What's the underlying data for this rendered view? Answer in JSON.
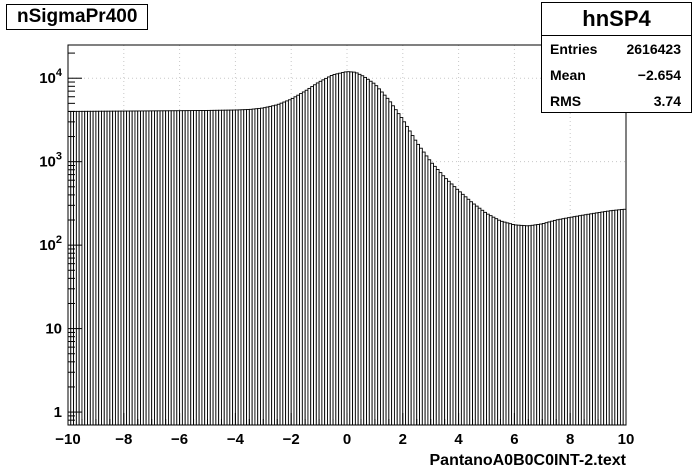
{
  "title": "nSigmaPr400",
  "stats": {
    "name": "hnSP4",
    "entries_label": "Entries",
    "entries_value": "2616423",
    "mean_label": "Mean",
    "mean_value": "−2.654",
    "rms_label": "RMS",
    "rms_value": "3.74"
  },
  "chart_data": {
    "type": "bar",
    "xlabel": "PantanoA0B0C0INT-2.text",
    "ylabel": "",
    "xlim": [
      -10,
      10
    ],
    "ylim": [
      0.7,
      25000
    ],
    "yscale": "log",
    "grid": true,
    "xticks": [
      -10,
      -8,
      -6,
      -4,
      -2,
      0,
      2,
      4,
      6,
      8,
      10
    ],
    "xtick_labels": [
      "−10",
      "−8",
      "−6",
      "−4",
      "−2",
      "0",
      "2",
      "4",
      "6",
      "8",
      "10"
    ],
    "yticks": [
      1,
      10,
      100,
      1000,
      10000
    ],
    "ytick_labels": [
      "1",
      "10",
      "10^2",
      "10^3",
      "10^4"
    ],
    "bin_width": 0.1,
    "curve": [
      [
        -10.0,
        4000
      ],
      [
        -9.0,
        4020
      ],
      [
        -8.0,
        4040
      ],
      [
        -7.0,
        4060
      ],
      [
        -6.0,
        4080
      ],
      [
        -5.0,
        4110
      ],
      [
        -4.0,
        4160
      ],
      [
        -3.5,
        4220
      ],
      [
        -3.0,
        4400
      ],
      [
        -2.5,
        4800
      ],
      [
        -2.0,
        5600
      ],
      [
        -1.5,
        7000
      ],
      [
        -1.0,
        9000
      ],
      [
        -0.5,
        11000
      ],
      [
        0.0,
        12000
      ],
      [
        0.3,
        11800
      ],
      [
        0.6,
        10500
      ],
      [
        1.0,
        8500
      ],
      [
        1.5,
        5500
      ],
      [
        2.0,
        3200
      ],
      [
        2.5,
        1700
      ],
      [
        3.0,
        1000
      ],
      [
        3.5,
        650
      ],
      [
        4.0,
        450
      ],
      [
        4.5,
        320
      ],
      [
        5.0,
        240
      ],
      [
        5.5,
        195
      ],
      [
        6.0,
        175
      ],
      [
        6.5,
        170
      ],
      [
        7.0,
        180
      ],
      [
        7.5,
        200
      ],
      [
        8.0,
        215
      ],
      [
        8.5,
        230
      ],
      [
        9.0,
        245
      ],
      [
        9.5,
        260
      ],
      [
        10.0,
        270
      ]
    ]
  }
}
